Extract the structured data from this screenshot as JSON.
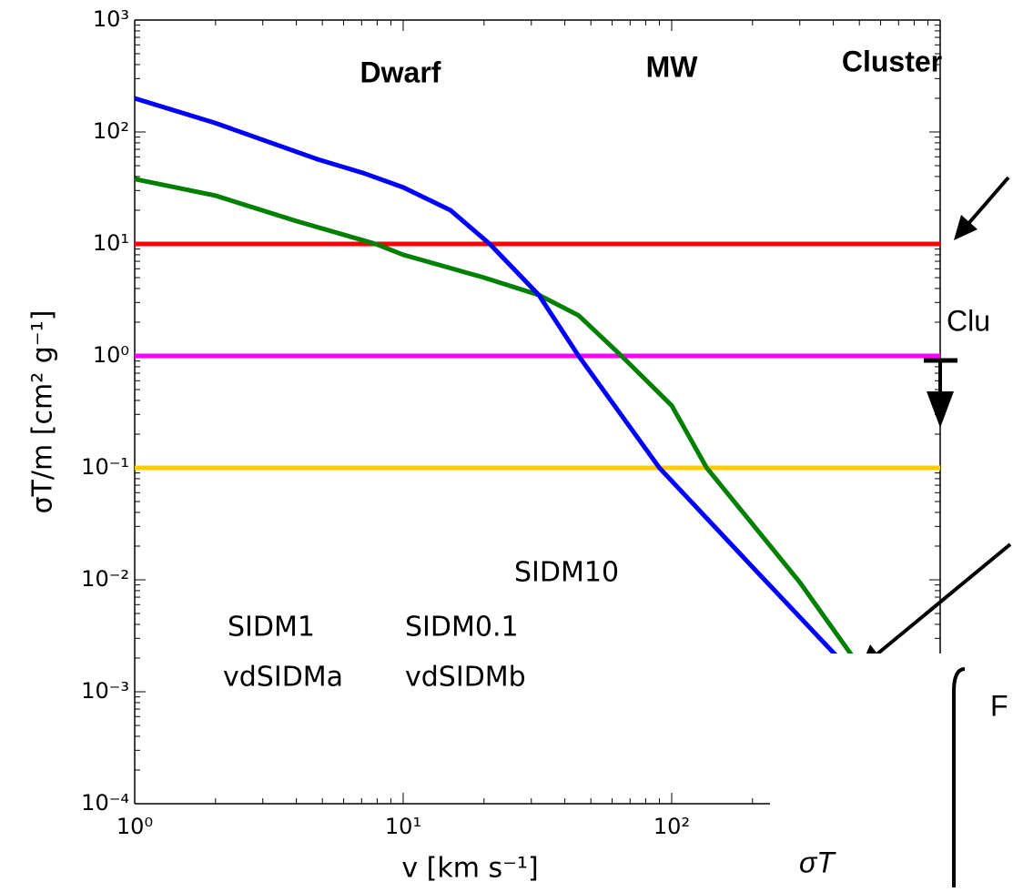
{
  "chart_data": {
    "type": "line",
    "xlabel": "v [km s⁻¹]",
    "ylabel": "σT/m [cm² g⁻¹]",
    "xscale": "log",
    "yscale": "log",
    "xlim": [
      1,
      1000
    ],
    "ylim": [
      0.0001,
      1000
    ],
    "xticks": [
      {
        "value": 1,
        "label": "10⁰"
      },
      {
        "value": 10,
        "label": "10¹"
      },
      {
        "value": 100,
        "label": "10²"
      }
    ],
    "yticks": [
      {
        "value": 0.0001,
        "label": "10⁻⁴"
      },
      {
        "value": 0.001,
        "label": "10⁻³"
      },
      {
        "value": 0.01,
        "label": "10⁻²"
      },
      {
        "value": 0.1,
        "label": "10⁻¹"
      },
      {
        "value": 1,
        "label": "10⁰"
      },
      {
        "value": 10,
        "label": "10¹"
      },
      {
        "value": 100,
        "label": "10²"
      },
      {
        "value": 1000,
        "label": "10³"
      }
    ],
    "series": [
      {
        "name": "SIDM10",
        "color": "#ff0000",
        "x": [
          1,
          1000
        ],
        "values": [
          10,
          10
        ]
      },
      {
        "name": "SIDM1",
        "color": "#ff00ff",
        "x": [
          1,
          1000
        ],
        "values": [
          1,
          1
        ]
      },
      {
        "name": "SIDM0.1",
        "color": "#ffcc00",
        "x": [
          1,
          1000
        ],
        "values": [
          0.1,
          0.1
        ]
      },
      {
        "name": "vdSIDMa",
        "color": "#008000",
        "x": [
          1,
          2,
          4,
          7.9,
          10,
          20,
          32,
          45,
          65,
          100,
          135,
          300,
          500,
          700
        ],
        "values": [
          38,
          27,
          16,
          10,
          8,
          5,
          3.5,
          2.3,
          1,
          0.36,
          0.1,
          0.0095,
          0.0017,
          0.0005
        ]
      },
      {
        "name": "vdSIDMb",
        "color": "#0000ff",
        "x": [
          1,
          2,
          4.8,
          7.1,
          10,
          15,
          21,
          32,
          45,
          90,
          200,
          410
        ],
        "values": [
          200,
          120,
          57,
          43,
          32,
          20,
          10,
          3.5,
          1,
          0.1,
          0.013,
          0.0021
        ]
      }
    ],
    "annotations": [
      "Dwarf",
      "MW",
      "Cluster"
    ],
    "cropped_texts": [
      "Clu",
      "F",
      "σT"
    ]
  }
}
